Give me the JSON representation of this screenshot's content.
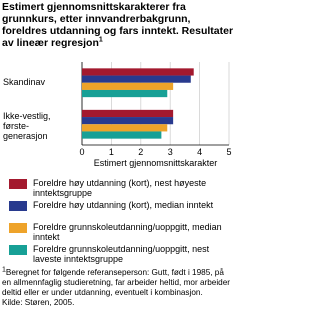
{
  "chart_data": {
    "type": "barh",
    "title": "Estimert gjennomsnittskarakterer fra grunnkurs, etter innvandrerbakgrunn, foreldres utdanning og fars inntekt. Resultater av lineær regresjon",
    "title_note": "1",
    "xlabel": "Estimert gjennomsnittskarakter",
    "categories": [
      "Skandinav",
      "Ikke-vestlig, første-generasjon"
    ],
    "series": [
      {
        "name": "Foreldre høy utdanning (kort), nest høyeste inntektsgruppe",
        "color": "#a3192e",
        "values": [
          3.8,
          3.1
        ]
      },
      {
        "name": "Foreldre høy utdanning (kort), median inntekt",
        "color": "#283a8e",
        "values": [
          3.7,
          3.1
        ]
      },
      {
        "name": "Foreldre grunnskoleutdanning/uoppgitt, median inntekt",
        "color": "#eea32a",
        "values": [
          3.1,
          2.9
        ]
      },
      {
        "name": "Foreldre grunnskoleutdanning/uoppgitt, nest laveste inntektsgruppe",
        "color": "#17a096",
        "values": [
          2.9,
          2.7
        ]
      }
    ],
    "xlim": [
      0,
      5
    ],
    "xticks": [
      0,
      1,
      2,
      3,
      4,
      5
    ],
    "grid": true,
    "footnote": {
      "mark": "1",
      "text": "Beregnet for følgende referanseperson: Gutt, født i 1985, på en allmennfaglig studieretning, far arbeider heltid, mor arbeider deltid eller er under utdanning, eventuelt i kombinasjon.",
      "source": "Kilde: Støren, 2005."
    }
  }
}
